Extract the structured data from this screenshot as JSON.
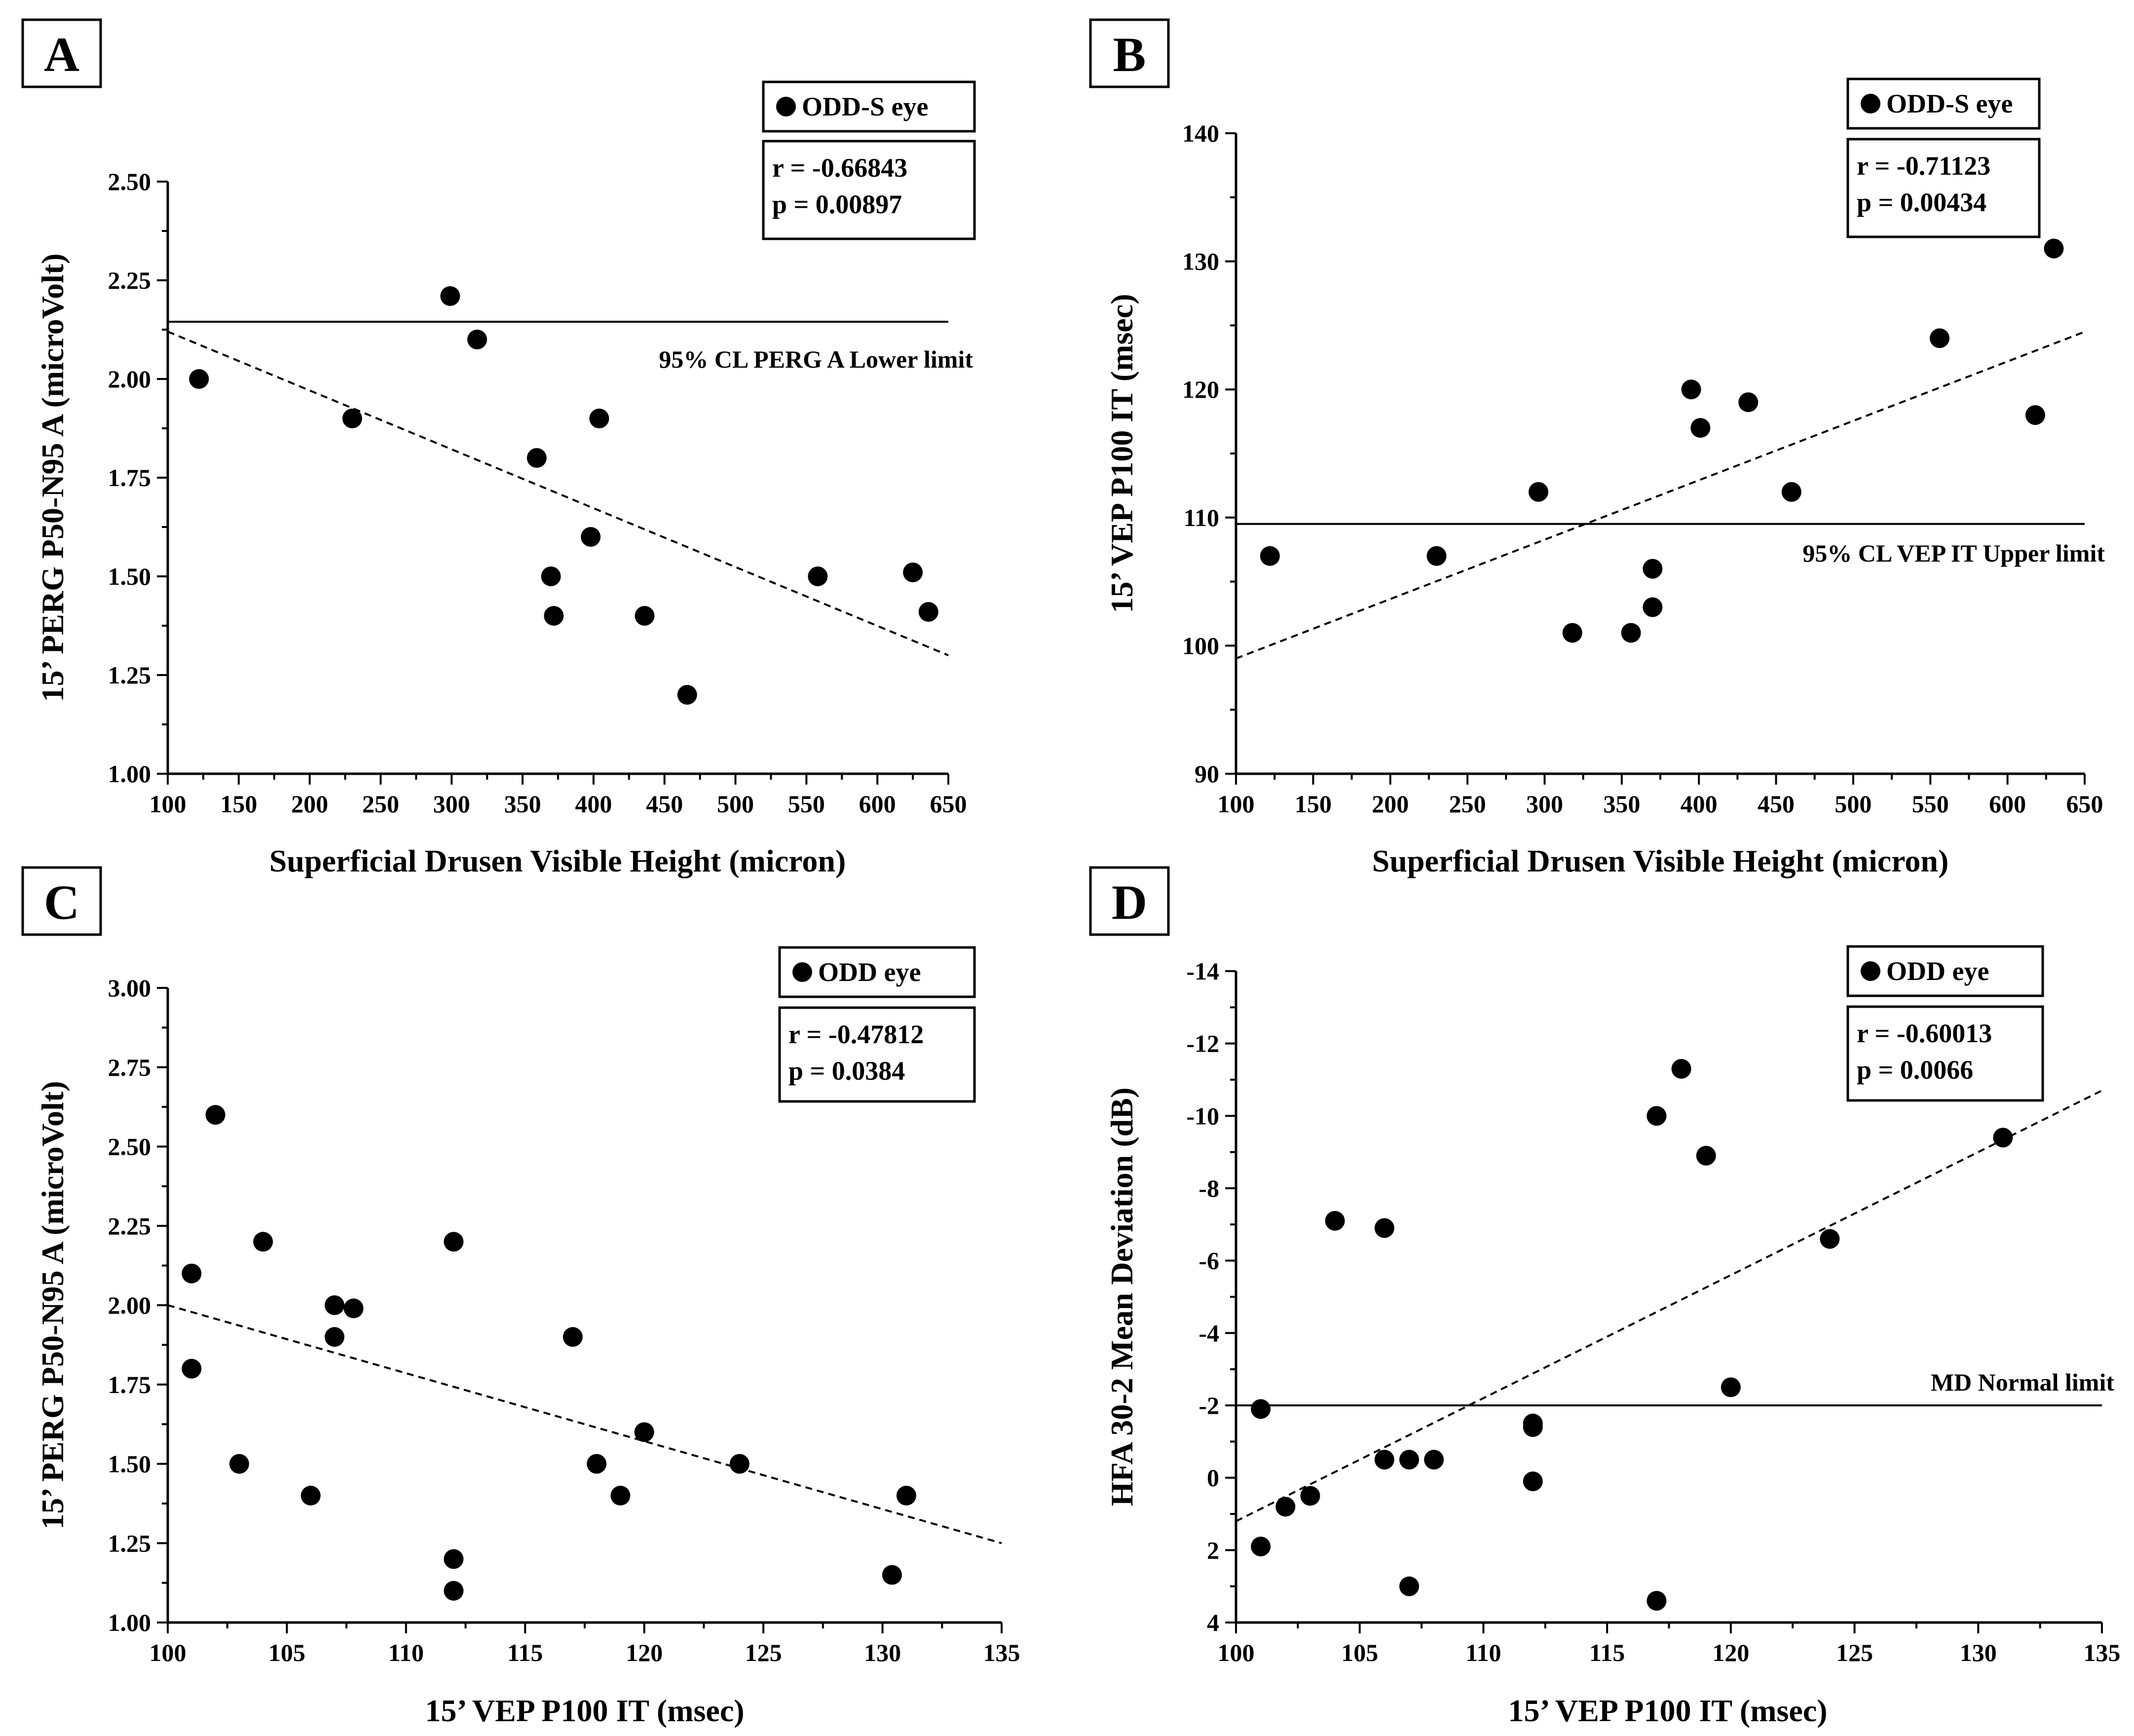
{
  "chart_data": [
    {
      "panel": "A",
      "type": "scatter",
      "xlabel": "Superficial Drusen Visible Height (micron)",
      "ylabel": "15’ PERG P50-N95 A (microVolt)",
      "xlim": [
        100,
        650
      ],
      "ylim": [
        1.0,
        2.5
      ],
      "y_reversed": false,
      "xticks": [
        100,
        150,
        200,
        250,
        300,
        350,
        400,
        450,
        500,
        550,
        600,
        650
      ],
      "xtick_labels": [
        "100",
        "150",
        "200",
        "250",
        "300",
        "350",
        "400",
        "450",
        "500",
        "550",
        "600",
        "650"
      ],
      "yticks": [
        1.0,
        1.25,
        1.5,
        1.75,
        2.0,
        2.25,
        2.5
      ],
      "ytick_labels": [
        "1.00",
        "1.25",
        "1.50",
        "1.75",
        "2.00",
        "2.25",
        "2.50"
      ],
      "legend": "ODD-S eye",
      "stats": [
        "r = -0.66843",
        "p = 0.00897"
      ],
      "points": [
        {
          "x": 122,
          "y": 2.0
        },
        {
          "x": 230,
          "y": 1.9
        },
        {
          "x": 299,
          "y": 2.21
        },
        {
          "x": 318,
          "y": 2.1
        },
        {
          "x": 360,
          "y": 1.8
        },
        {
          "x": 370,
          "y": 1.5
        },
        {
          "x": 372,
          "y": 1.4
        },
        {
          "x": 398,
          "y": 1.6
        },
        {
          "x": 404,
          "y": 1.9
        },
        {
          "x": 436,
          "y": 1.4
        },
        {
          "x": 466,
          "y": 1.2
        },
        {
          "x": 558,
          "y": 1.5
        },
        {
          "x": 625,
          "y": 1.51
        },
        {
          "x": 636,
          "y": 1.41
        }
      ],
      "trend": {
        "x": [
          100,
          650
        ],
        "y": [
          2.12,
          1.3
        ]
      },
      "reference": {
        "y": 2.145,
        "x_range": [
          100,
          650
        ],
        "label": "95% CL PERG A Lower limit"
      }
    },
    {
      "panel": "B",
      "type": "scatter",
      "xlabel": "Superficial Drusen Visible Height (micron)",
      "ylabel": "15’ VEP P100 IT (msec)",
      "xlim": [
        100,
        650
      ],
      "ylim": [
        90,
        140
      ],
      "y_reversed": false,
      "xticks": [
        100,
        150,
        200,
        250,
        300,
        350,
        400,
        450,
        500,
        550,
        600,
        650
      ],
      "xtick_labels": [
        "100",
        "150",
        "200",
        "250",
        "300",
        "350",
        "400",
        "450",
        "500",
        "550",
        "600",
        "650"
      ],
      "yticks": [
        90,
        100,
        110,
        120,
        130,
        140
      ],
      "ytick_labels": [
        "90",
        "100",
        "110",
        "120",
        "130",
        "140"
      ],
      "legend": "ODD-S eye",
      "stats": [
        "r = -0.71123",
        "p = 0.00434"
      ],
      "points": [
        {
          "x": 122,
          "y": 107
        },
        {
          "x": 230,
          "y": 107
        },
        {
          "x": 296,
          "y": 112
        },
        {
          "x": 318,
          "y": 101
        },
        {
          "x": 356,
          "y": 101
        },
        {
          "x": 370,
          "y": 103
        },
        {
          "x": 370,
          "y": 106
        },
        {
          "x": 395,
          "y": 120
        },
        {
          "x": 401,
          "y": 117
        },
        {
          "x": 432,
          "y": 119
        },
        {
          "x": 460,
          "y": 112
        },
        {
          "x": 556,
          "y": 124
        },
        {
          "x": 618,
          "y": 118
        },
        {
          "x": 630,
          "y": 131
        }
      ],
      "trend": {
        "x": [
          100,
          650
        ],
        "y": [
          99,
          124.5
        ]
      },
      "reference": {
        "y": 109.5,
        "x_range": [
          100,
          650
        ],
        "label": "95% CL VEP IT Upper limit"
      }
    },
    {
      "panel": "C",
      "type": "scatter",
      "xlabel": "15’ VEP P100 IT (msec)",
      "ylabel": "15’ PERG P50-N95 A (microVolt)",
      "xlim": [
        100,
        135
      ],
      "ylim": [
        1.0,
        3.0
      ],
      "y_reversed": false,
      "xticks": [
        100,
        105,
        110,
        115,
        120,
        125,
        130,
        135
      ],
      "xtick_labels": [
        "100",
        "105",
        "110",
        "115",
        "120",
        "125",
        "130",
        "135"
      ],
      "yticks": [
        1.0,
        1.25,
        1.5,
        1.75,
        2.0,
        2.25,
        2.5,
        2.75,
        3.0
      ],
      "ytick_labels": [
        "1.00",
        "1.25",
        "1.50",
        "1.75",
        "2.00",
        "2.25",
        "2.50",
        "2.75",
        "3.00"
      ],
      "legend": "ODD eye",
      "stats": [
        "r = -0.47812",
        "p = 0.0384"
      ],
      "points": [
        {
          "x": 101,
          "y": 2.1
        },
        {
          "x": 101,
          "y": 1.8
        },
        {
          "x": 102,
          "y": 2.6
        },
        {
          "x": 103,
          "y": 1.5
        },
        {
          "x": 104,
          "y": 2.2
        },
        {
          "x": 106,
          "y": 1.4
        },
        {
          "x": 107,
          "y": 2.0
        },
        {
          "x": 107,
          "y": 1.9
        },
        {
          "x": 107.8,
          "y": 1.99
        },
        {
          "x": 112,
          "y": 2.2
        },
        {
          "x": 112,
          "y": 1.2
        },
        {
          "x": 112,
          "y": 1.1
        },
        {
          "x": 117,
          "y": 1.9
        },
        {
          "x": 118,
          "y": 1.5
        },
        {
          "x": 119,
          "y": 1.4
        },
        {
          "x": 120,
          "y": 1.6
        },
        {
          "x": 124,
          "y": 1.5
        },
        {
          "x": 130.4,
          "y": 1.15
        },
        {
          "x": 131,
          "y": 1.4
        }
      ],
      "trend": {
        "x": [
          100,
          135
        ],
        "y": [
          2.0,
          1.25
        ]
      },
      "reference": null
    },
    {
      "panel": "D",
      "type": "scatter",
      "xlabel": "15’ VEP P100 IT (msec)",
      "ylabel": "HFA 30-2 Mean Deviation (dB)",
      "xlim": [
        100,
        135
      ],
      "ylim": [
        4,
        -14
      ],
      "y_reversed": true,
      "xticks": [
        100,
        105,
        110,
        115,
        120,
        125,
        130,
        135
      ],
      "xtick_labels": [
        "100",
        "105",
        "110",
        "115",
        "120",
        "125",
        "130",
        "135"
      ],
      "yticks": [
        4,
        2,
        0,
        -2,
        -4,
        -6,
        -8,
        -10,
        -12,
        -14
      ],
      "ytick_labels": [
        "4",
        "2",
        "0",
        "-2",
        "-4",
        "-6",
        "-8",
        "-10",
        "-12",
        "-14"
      ],
      "legend": "ODD eye",
      "stats": [
        "r = -0.60013",
        "p = 0.0066"
      ],
      "points": [
        {
          "x": 101,
          "y": -1.9
        },
        {
          "x": 101,
          "y": 1.9
        },
        {
          "x": 102,
          "y": 0.8
        },
        {
          "x": 103,
          "y": 0.5
        },
        {
          "x": 104,
          "y": -7.1
        },
        {
          "x": 106,
          "y": -6.9
        },
        {
          "x": 106,
          "y": -0.5
        },
        {
          "x": 107,
          "y": -0.5
        },
        {
          "x": 107,
          "y": 3.0
        },
        {
          "x": 108,
          "y": -0.5
        },
        {
          "x": 112,
          "y": -1.5
        },
        {
          "x": 112,
          "y": -1.4
        },
        {
          "x": 112,
          "y": 0.1
        },
        {
          "x": 117,
          "y": -10.0
        },
        {
          "x": 117,
          "y": 3.4
        },
        {
          "x": 118,
          "y": -11.3
        },
        {
          "x": 119,
          "y": -8.9
        },
        {
          "x": 120,
          "y": -2.5
        },
        {
          "x": 124,
          "y": -6.6
        },
        {
          "x": 131,
          "y": -9.4
        }
      ],
      "trend": {
        "x": [
          100,
          135
        ],
        "y": [
          1.2,
          -10.7
        ]
      },
      "reference": {
        "y": -2.0,
        "x_range": [
          100,
          135
        ],
        "label": "MD Normal limit"
      }
    }
  ]
}
